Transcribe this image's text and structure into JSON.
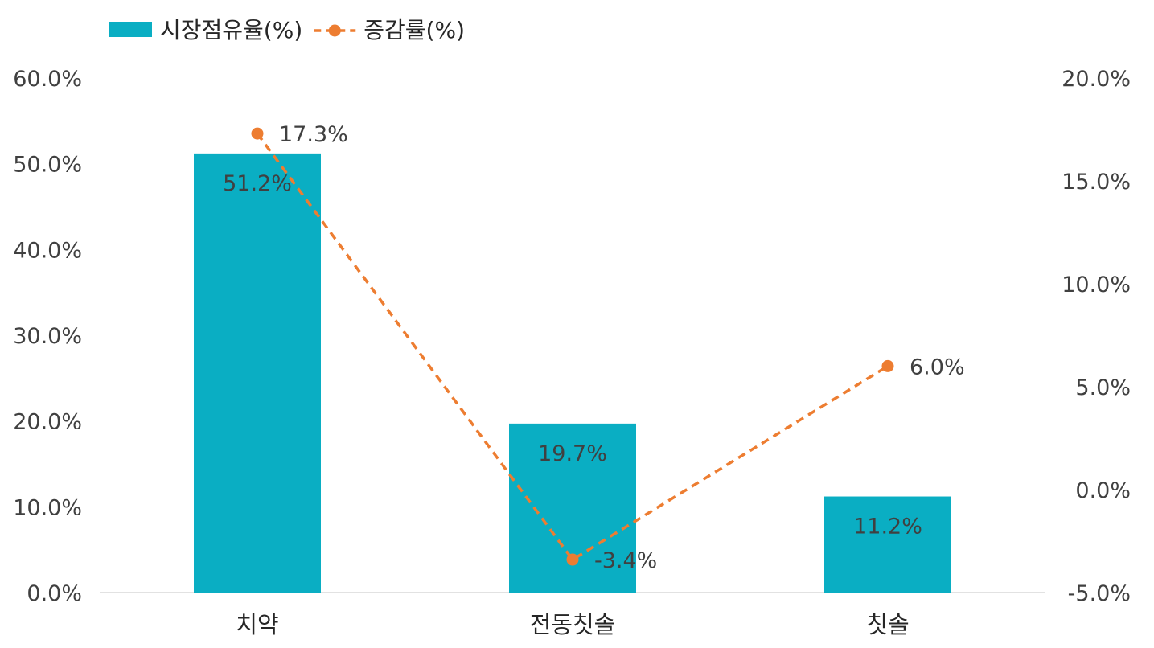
{
  "chart_data": {
    "type": "bar",
    "categories": [
      "치약",
      "전동칫솔",
      "칫솔"
    ],
    "series": [
      {
        "name": "시장점유율(%)",
        "kind": "bar",
        "axis": "left",
        "values": [
          51.2,
          19.7,
          11.2
        ],
        "labels": [
          "51.2%",
          "19.7%",
          "11.2%"
        ],
        "color": "#0AAEC3"
      },
      {
        "name": "증감률(%)",
        "kind": "line",
        "style": "dashed",
        "axis": "right",
        "values": [
          17.3,
          -3.4,
          6.0
        ],
        "labels": [
          "17.3%",
          "-3.4%",
          "6.0%"
        ],
        "color": "#ED7D31"
      }
    ],
    "y_left": {
      "ylim": [
        0,
        60
      ],
      "ticks": [
        "0.0%",
        "10.0%",
        "20.0%",
        "30.0%",
        "40.0%",
        "50.0%",
        "60.0%"
      ]
    },
    "y_right": {
      "ylim": [
        -5,
        20
      ],
      "ticks": [
        "-5.0%",
        "0.0%",
        "5.0%",
        "10.0%",
        "15.0%",
        "20.0%"
      ]
    },
    "grid": false,
    "legend": "top-left"
  }
}
